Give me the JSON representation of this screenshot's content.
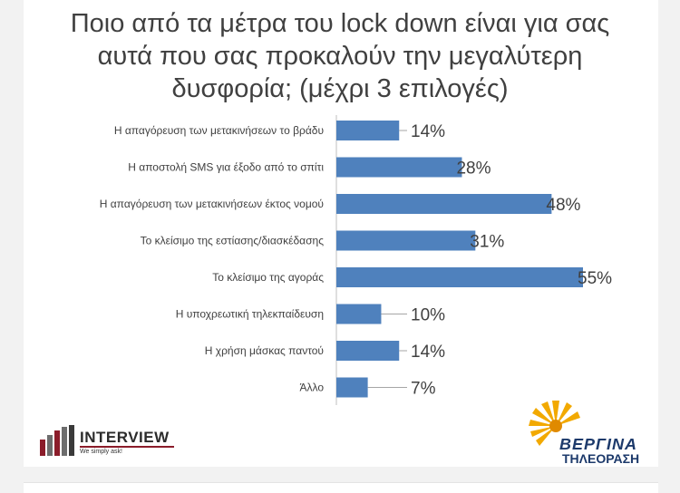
{
  "chart_data": {
    "type": "bar",
    "orientation": "horizontal",
    "title_lines": [
      "Ποιο από τα μέτρα του lock down είναι για σας",
      "αυτά που σας προκαλούν την μεγαλύτερη",
      "δυσφορία; (μέχρι 3 επιλογές)"
    ],
    "categories": [
      "Η απαγόρευση των μετακινήσεων το βράδυ",
      "Η αποστολή SMS για έξοδο από το σπίτι",
      "Η απαγόρευση των μετακινήσεων έκτος νομού",
      "Το κλείσιμο της εστίασης/διασκέδασης",
      "Το κλείσιμο της αγοράς",
      "Η υποχρεωτική τηλεκπαίδευση",
      "Η χρήση μάσκας παντού",
      "Άλλο"
    ],
    "values": [
      14,
      28,
      48,
      31,
      55,
      10,
      14,
      7
    ],
    "value_labels": [
      "14%",
      "28%",
      "48%",
      "31%",
      "55%",
      "10%",
      "14%",
      "7%"
    ],
    "xlim": [
      0,
      55
    ],
    "bar_color": "#4f81bd",
    "grid": false,
    "legend": "none"
  },
  "logos": {
    "interview": {
      "name": "INTERVIEW",
      "tagline": "We simply ask!",
      "accent": "#8b1c2a"
    },
    "vergina": {
      "name": "ΒΕΡΓΙΝΑ",
      "subtitle": "ΤΗΛΕΟΡΑΣΗ",
      "color": "#1d3a6b",
      "sun_color": "#f2a900"
    }
  }
}
